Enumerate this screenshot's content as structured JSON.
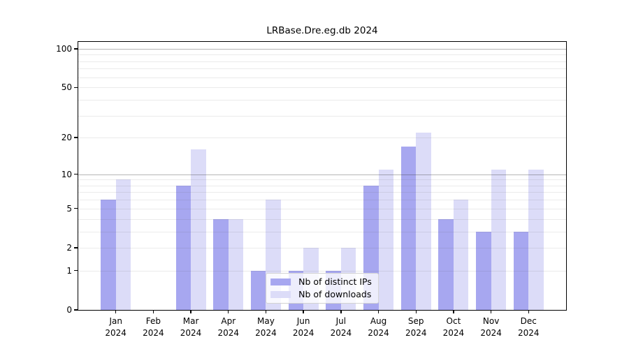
{
  "title": "LRBase.Dre.eg.db 2024",
  "chart_data": {
    "type": "bar",
    "title": "LRBase.Dre.eg.db 2024",
    "categories": [
      "Jan 2024",
      "Feb 2024",
      "Mar 2024",
      "Apr 2024",
      "May 2024",
      "Jun 2024",
      "Jul 2024",
      "Aug 2024",
      "Sep 2024",
      "Oct 2024",
      "Nov 2024",
      "Dec 2024"
    ],
    "series": [
      {
        "name": "Nb of distinct IPs",
        "color": "#a7a7f0",
        "values": [
          6,
          0,
          8,
          4,
          1,
          1,
          1,
          8,
          17,
          4,
          3,
          3
        ]
      },
      {
        "name": "Nb of downloads",
        "color": "#dcdcf8",
        "values": [
          9,
          0,
          16,
          4,
          6,
          2,
          2,
          11,
          22,
          6,
          11,
          11
        ]
      }
    ],
    "xlabel": "",
    "ylabel": "",
    "y_scale": "log1p",
    "ylim": [
      0,
      113
    ],
    "y_ticks": [
      0,
      1,
      2,
      5,
      10,
      20,
      50,
      100
    ],
    "grid_minor": [
      1,
      2,
      3,
      4,
      5,
      6,
      7,
      8,
      9,
      20,
      30,
      40,
      50,
      60,
      70,
      80,
      90
    ],
    "grid_major": [
      10,
      100
    ],
    "grid": "on",
    "legend_position": "lower center inside",
    "colors": {
      "bar_distinct_ips": "#a7a7f0",
      "bar_downloads": "#dcdcf8",
      "axis": "#000000",
      "grid_minor": "#ececec",
      "grid_major": "#b5b5b5",
      "background": "#ffffff"
    }
  }
}
